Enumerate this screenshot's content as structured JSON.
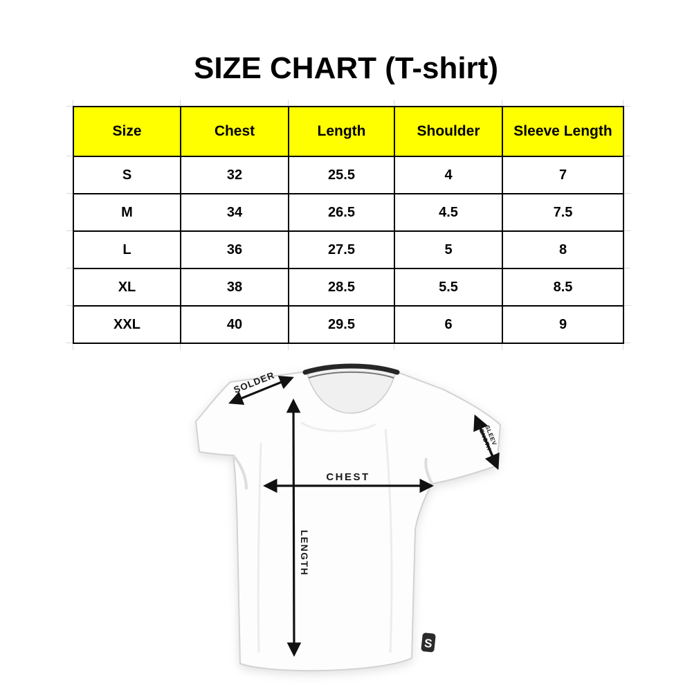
{
  "page": {
    "title": "SIZE CHART (T-shirt)"
  },
  "table": {
    "headers": [
      "Size",
      "Chest",
      "Length",
      "Shoulder",
      "Sleeve Length"
    ],
    "rows": [
      [
        "S",
        "32",
        "25.5",
        "4",
        "7"
      ],
      [
        "M",
        "34",
        "26.5",
        "4.5",
        "7.5"
      ],
      [
        "L",
        "36",
        "27.5",
        "5",
        "8"
      ],
      [
        "XL",
        "38",
        "28.5",
        "5.5",
        "8.5"
      ],
      [
        "XXL",
        "40",
        "29.5",
        "6",
        "9"
      ]
    ],
    "header_bg": "#ffff00",
    "border_color": "#000000"
  },
  "diagram": {
    "labels": {
      "shoulder": "SOLDER",
      "sleeve_line1": "SLEEV",
      "sleeve_line2": "LENGTH",
      "chest": "CHEST",
      "length": "LENGTH"
    },
    "badge_letter": "S",
    "arrow_color": "#111111",
    "collar_color": "#262626",
    "badge_bg": "#2b2b2b"
  },
  "chart_data": {
    "type": "table",
    "title": "SIZE CHART (T-shirt)",
    "columns": [
      "Size",
      "Chest",
      "Length",
      "Shoulder",
      "Sleeve Length"
    ],
    "rows": [
      {
        "size": "S",
        "chest": 32,
        "length": 25.5,
        "shoulder": 4,
        "sleeve_length": 7
      },
      {
        "size": "M",
        "chest": 34,
        "length": 26.5,
        "shoulder": 4.5,
        "sleeve_length": 7.5
      },
      {
        "size": "L",
        "chest": 36,
        "length": 27.5,
        "shoulder": 5,
        "sleeve_length": 8
      },
      {
        "size": "XL",
        "chest": 38,
        "length": 28.5,
        "shoulder": 5.5,
        "sleeve_length": 8.5
      },
      {
        "size": "XXL",
        "chest": 40,
        "length": 29.5,
        "shoulder": 6,
        "sleeve_length": 9
      }
    ],
    "layout_hints": {
      "header_background": "#ffff00",
      "grid": true,
      "values_bold": true
    }
  }
}
